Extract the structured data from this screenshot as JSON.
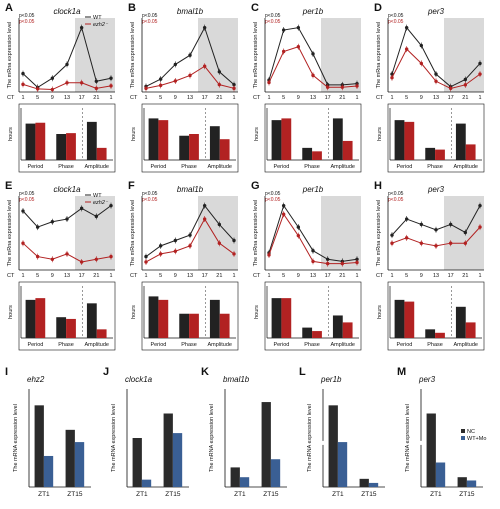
{
  "colors": {
    "wt": "#222222",
    "mut": "#b22222",
    "nc": "#2b2b2b",
    "mo": "#3a5f94",
    "shade": "#d9d9d9"
  },
  "labels": {
    "wt": "WT",
    "mut": "ezh2⁻",
    "p_black": "p<0.05",
    "p_red": "p<0.05",
    "nc": "NC",
    "mo": "WT+Mo",
    "y_expr": "The mRna expression level",
    "y_expr_caps": "The mRNA expression level",
    "hours": "hours",
    "ct": "CT"
  },
  "ct_ticks": [
    "1",
    "5",
    "9",
    "13",
    "17",
    "21",
    "1"
  ],
  "bar_categories": [
    "Period",
    "Phase",
    "Amplitude"
  ],
  "zt_categories": [
    "ZT1",
    "ZT15"
  ],
  "top_panels": [
    {
      "letter": "A",
      "gene": "clock1a"
    },
    {
      "letter": "B",
      "gene": "bmal1b"
    },
    {
      "letter": "C",
      "gene": "per1b"
    },
    {
      "letter": "D",
      "gene": "per3"
    },
    {
      "letter": "E",
      "gene": "clock1a"
    },
    {
      "letter": "F",
      "gene": "bmal1b"
    },
    {
      "letter": "G",
      "gene": "per1b"
    },
    {
      "letter": "H",
      "gene": "per3"
    }
  ],
  "bottom_panels": [
    {
      "letter": "I",
      "gene": "ehz2"
    },
    {
      "letter": "J",
      "gene": "clock1a"
    },
    {
      "letter": "K",
      "gene": "bmal1b"
    },
    {
      "letter": "L",
      "gene": "per1b"
    },
    {
      "letter": "M",
      "gene": "per3"
    }
  ],
  "chart_data": [
    {
      "type": "line",
      "panel": "A",
      "title": "clock1a",
      "xlabel": "CT",
      "ylabel": "The mRna expression level",
      "x": [
        "1",
        "5",
        "9",
        "13",
        "17",
        "21",
        "1"
      ],
      "series": [
        {
          "name": "WT",
          "values": [
            0.6,
            0.15,
            0.45,
            0.9,
            2.1,
            0.35,
            0.45
          ]
        },
        {
          "name": "ezh2⁻",
          "values": [
            0.25,
            0.1,
            0.08,
            0.3,
            0.3,
            0.12,
            0.2
          ]
        }
      ]
    },
    {
      "type": "bar",
      "panel": "A",
      "ylabel": "hours",
      "categories": [
        "Period",
        "Phase",
        "Amplitude"
      ],
      "ylim": [
        0,
        30
      ],
      "ylim_right": [
        0,
        1.5
      ],
      "series": [
        {
          "name": "WT",
          "values": [
            21,
            15,
            1.1
          ]
        },
        {
          "name": "ezh2⁻",
          "values": [
            21.5,
            15.5,
            0.35
          ]
        }
      ]
    },
    {
      "type": "line",
      "panel": "B",
      "title": "bmal1b",
      "xlabel": "CT",
      "ylabel": "The mRna expression level",
      "x": [
        "1",
        "5",
        "9",
        "13",
        "17",
        "21",
        "1"
      ],
      "series": [
        {
          "name": "WT",
          "values": [
            0.15,
            0.35,
            0.75,
            1.0,
            1.75,
            0.55,
            0.2
          ]
        },
        {
          "name": "ezh2⁻",
          "values": [
            0.1,
            0.18,
            0.3,
            0.45,
            0.7,
            0.2,
            0.1
          ]
        }
      ]
    },
    {
      "type": "bar",
      "panel": "B",
      "ylabel": "hours",
      "categories": [
        "Period",
        "Phase",
        "Amplitude"
      ],
      "ylim": [
        0,
        30
      ],
      "ylim_right": [
        0,
        2
      ],
      "series": [
        {
          "name": "WT",
          "values": [
            24,
            14,
            1.3
          ]
        },
        {
          "name": "ezh2⁻",
          "values": [
            23,
            15,
            0.8
          ]
        }
      ]
    },
    {
      "type": "line",
      "panel": "C",
      "title": "per1b",
      "xlabel": "CT",
      "ylabel": "The mRna expression level",
      "x": [
        "1",
        "5",
        "9",
        "13",
        "17",
        "21",
        "1"
      ],
      "series": [
        {
          "name": "WT",
          "values": [
            0.5,
            2.6,
            2.7,
            1.6,
            0.3,
            0.3,
            0.35
          ]
        },
        {
          "name": "ezh2⁻",
          "values": [
            0.4,
            1.7,
            1.9,
            0.7,
            0.2,
            0.2,
            0.25
          ]
        }
      ]
    },
    {
      "type": "bar",
      "panel": "C",
      "ylabel": "hours",
      "categories": [
        "Period",
        "Phase",
        "Amplitude"
      ],
      "ylim": [
        0,
        30
      ],
      "ylim_right": [
        0,
        3
      ],
      "series": [
        {
          "name": "WT",
          "values": [
            23,
            7,
            2.4
          ]
        },
        {
          "name": "ezh2⁻",
          "values": [
            24,
            5,
            1.1
          ]
        }
      ]
    },
    {
      "type": "line",
      "panel": "D",
      "title": "per3",
      "xlabel": "CT",
      "ylabel": "The mRna expression level",
      "x": [
        "1",
        "5",
        "9",
        "13",
        "17",
        "21",
        "1"
      ],
      "series": [
        {
          "name": "WT",
          "values": [
            1.0,
            3.6,
            2.6,
            1.0,
            0.3,
            0.7,
            1.6
          ]
        },
        {
          "name": "ezh2⁻",
          "values": [
            0.8,
            2.4,
            1.6,
            0.6,
            0.2,
            0.4,
            1.0
          ]
        }
      ]
    },
    {
      "type": "bar",
      "panel": "D",
      "ylabel": "hours",
      "categories": [
        "Period",
        "Phase",
        "Amplitude"
      ],
      "ylim": [
        0,
        30
      ],
      "ylim_right": [
        0,
        4
      ],
      "series": [
        {
          "name": "WT",
          "values": [
            23,
            7,
            2.8
          ]
        },
        {
          "name": "ezh2⁻",
          "values": [
            22,
            6,
            1.2
          ]
        }
      ]
    },
    {
      "type": "line",
      "panel": "E",
      "title": "clock1a",
      "xlabel": "CT",
      "ylabel": "The mRna expression level",
      "x": [
        "1",
        "5",
        "9",
        "13",
        "17",
        "21",
        "1"
      ],
      "series": [
        {
          "name": "WT",
          "values": [
            1.1,
            0.8,
            0.9,
            0.95,
            1.15,
            1.0,
            1.2
          ]
        },
        {
          "name": "ezh2⁻",
          "values": [
            0.5,
            0.25,
            0.2,
            0.3,
            0.15,
            0.2,
            0.25
          ]
        }
      ]
    },
    {
      "type": "bar",
      "panel": "E",
      "ylabel": "hours",
      "categories": [
        "Period",
        "Phase",
        "Amplitude"
      ],
      "ylim": [
        0,
        30
      ],
      "ylim_right": [
        0,
        1.2
      ],
      "series": [
        {
          "name": "WT",
          "values": [
            22,
            12,
            0.8
          ]
        },
        {
          "name": "ezh2⁻",
          "values": [
            23,
            11,
            0.2
          ]
        }
      ]
    },
    {
      "type": "line",
      "panel": "F",
      "title": "bmal1b",
      "xlabel": "CT",
      "ylabel": "The mRna expression level",
      "x": [
        "1",
        "5",
        "9",
        "13",
        "17",
        "21",
        "1"
      ],
      "series": [
        {
          "name": "WT",
          "values": [
            0.5,
            0.9,
            1.1,
            1.3,
            2.4,
            1.7,
            1.1
          ]
        },
        {
          "name": "ezh2⁻",
          "values": [
            0.3,
            0.6,
            0.7,
            0.9,
            1.9,
            1.0,
            0.6
          ]
        }
      ]
    },
    {
      "type": "bar",
      "panel": "F",
      "ylabel": "hours",
      "categories": [
        "Period",
        "Phase",
        "Amplitude"
      ],
      "ylim": [
        0,
        30
      ],
      "ylim_right": [
        0,
        1.5
      ],
      "series": [
        {
          "name": "WT",
          "values": [
            24,
            14,
            1.1
          ]
        },
        {
          "name": "ezh2⁻",
          "values": [
            22,
            14,
            0.7
          ]
        }
      ]
    },
    {
      "type": "line",
      "panel": "G",
      "title": "per1b",
      "xlabel": "CT",
      "ylabel": "The mRna expression level",
      "x": [
        "1",
        "5",
        "9",
        "13",
        "17",
        "21",
        "1"
      ],
      "series": [
        {
          "name": "WT",
          "values": [
            0.8,
            3.0,
            2.0,
            0.9,
            0.5,
            0.4,
            0.5
          ]
        },
        {
          "name": "ezh2⁻",
          "values": [
            0.7,
            2.6,
            1.6,
            0.4,
            0.3,
            0.3,
            0.35
          ]
        }
      ]
    },
    {
      "type": "bar",
      "panel": "G",
      "ylabel": "hours",
      "categories": [
        "Period",
        "Phase",
        "Amplitude"
      ],
      "ylim": [
        0,
        30
      ],
      "ylim_right": [
        0,
        3
      ],
      "series": [
        {
          "name": "WT",
          "values": [
            23,
            6,
            1.3
          ]
        },
        {
          "name": "ezh2⁻",
          "values": [
            23,
            4,
            0.9
          ]
        }
      ]
    },
    {
      "type": "line",
      "panel": "H",
      "title": "per3",
      "xlabel": "CT",
      "ylabel": "The mRna expression level",
      "x": [
        "1",
        "5",
        "9",
        "13",
        "17",
        "21",
        "1"
      ],
      "series": [
        {
          "name": "WT",
          "values": [
            1.3,
            1.9,
            1.7,
            1.5,
            1.7,
            1.4,
            2.4
          ]
        },
        {
          "name": "ezh2⁻",
          "values": [
            1.0,
            1.2,
            1.0,
            0.9,
            1.0,
            1.0,
            1.6
          ]
        }
      ]
    },
    {
      "type": "bar",
      "panel": "H",
      "ylabel": "hours",
      "categories": [
        "Period",
        "Phase",
        "Amplitude"
      ],
      "ylim": [
        0,
        30
      ],
      "ylim_right": [
        0,
        1
      ],
      "series": [
        {
          "name": "WT",
          "values": [
            22,
            5,
            0.6
          ]
        },
        {
          "name": "ezh2⁻",
          "values": [
            21,
            3,
            0.3
          ]
        }
      ]
    },
    {
      "type": "bar",
      "panel": "I",
      "title": "ehz2",
      "ylabel": "The mRNA expression level",
      "categories": [
        "ZT1",
        "ZT15"
      ],
      "ylim": [
        0,
        1.2
      ],
      "series": [
        {
          "name": "NC",
          "values": [
            1.0,
            0.7
          ]
        },
        {
          "name": "WT+Mo",
          "values": [
            0.38,
            0.55
          ]
        }
      ]
    },
    {
      "type": "bar",
      "panel": "J",
      "title": "clock1a",
      "ylabel": "The mRNA expression level",
      "categories": [
        "ZT1",
        "ZT15"
      ],
      "ylim": [
        0,
        2
      ],
      "series": [
        {
          "name": "NC",
          "values": [
            1.0,
            1.5
          ]
        },
        {
          "name": "WT+Mo",
          "values": [
            0.15,
            1.1
          ]
        }
      ]
    },
    {
      "type": "bar",
      "panel": "K",
      "title": "bmal1b",
      "ylabel": "The mRNA expression level",
      "categories": [
        "ZT1",
        "ZT15"
      ],
      "ylim": [
        0,
        3
      ],
      "series": [
        {
          "name": "NC",
          "values": [
            0.6,
            2.6
          ]
        },
        {
          "name": "WT+Mo",
          "values": [
            0.3,
            0.85
          ]
        }
      ]
    },
    {
      "type": "bar",
      "panel": "L",
      "title": "per1b",
      "ylabel": "The mRNA expression level",
      "categories": [
        "ZT1",
        "ZT15"
      ],
      "ylim": [
        0,
        1.2
      ],
      "broken_axis": true,
      "series": [
        {
          "name": "NC",
          "values": [
            1.0,
            0.1
          ]
        },
        {
          "name": "WT+Mo",
          "values": [
            0.55,
            0.05
          ]
        }
      ]
    },
    {
      "type": "bar",
      "panel": "M",
      "title": "per3",
      "ylabel": "The mRNA expression level",
      "categories": [
        "ZT1",
        "ZT15"
      ],
      "ylim": [
        0,
        1.2
      ],
      "broken_axis": true,
      "series": [
        {
          "name": "NC",
          "values": [
            0.9,
            0.12
          ]
        },
        {
          "name": "WT+Mo",
          "values": [
            0.3,
            0.08
          ]
        }
      ]
    }
  ]
}
